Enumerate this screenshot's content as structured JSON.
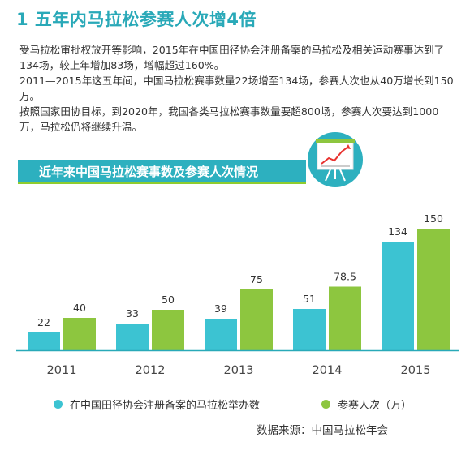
{
  "title": "1  五年内马拉松参赛人次增4倍",
  "paragraphs": [
    "受马拉松审批权放开等影响，2015年在中国田径协会注册备案的马拉松及相关运动赛事达到了134场，较上年增加83场，增幅超过160%。",
    "2011—2015年这五年间，中国马拉松赛事数量22场增至134场，参赛人次也从40万增长到150万。",
    "按照国家田协目标，到2020年，我国各类马拉松赛事数量要超800场，参赛人次要达到1000万，马拉松仍将继续升温。"
  ],
  "banner": "近年来中国马拉松赛事数及参赛人次情况",
  "source": "数据来源：中国马拉松年会",
  "colors": {
    "teal": "#3cc3d2",
    "green": "#8dc63f",
    "title": "#29a9b8",
    "banner": "#2db0bf",
    "axis": "#29a9b8"
  },
  "chart_data": {
    "type": "bar",
    "categories": [
      "2011",
      "2012",
      "2013",
      "2014",
      "2015"
    ],
    "series": [
      {
        "name": "在中国田径协会注册备案的马拉松举办数",
        "values": [
          22,
          33,
          39,
          51,
          134
        ],
        "labels": [
          "22",
          "33",
          "39",
          "51",
          "134"
        ]
      },
      {
        "name": "参赛人次（万）",
        "values": [
          40,
          50,
          75,
          78.5,
          150
        ],
        "labels": [
          "40",
          "50",
          "75",
          "78.5",
          "150"
        ]
      }
    ],
    "legend_position": "bottom"
  }
}
